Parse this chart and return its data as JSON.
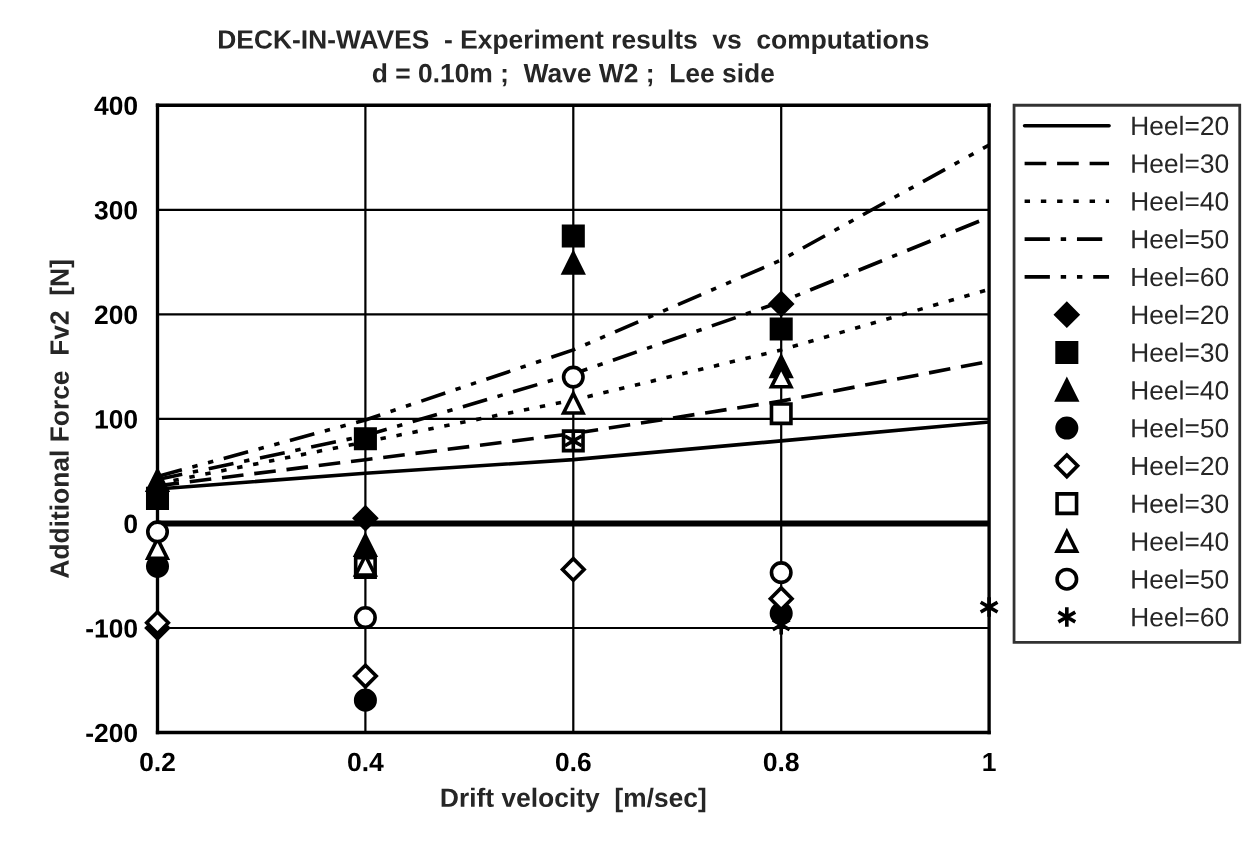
{
  "chart_data": {
    "type": "line",
    "title": "DECK-IN-WAVES  - Experiment results  vs  computations",
    "subtitle": "d = 0.10m ;  Wave W2 ;  Lee side",
    "xlabel": "Drift velocity  [m/sec]",
    "ylabel": "Additional Force  Fv2  [N]",
    "x": [
      0.2,
      0.4,
      0.6,
      0.8,
      1.0
    ],
    "series": [
      {
        "name": "Heel=20",
        "color": "#000000",
        "line_style": "solid",
        "marker": "none",
        "values": [
          33,
          48,
          61,
          79,
          97
        ]
      },
      {
        "name": "Heel=30",
        "color": "#000000",
        "line_style": "dashed",
        "marker": "none",
        "values": [
          36,
          61,
          86,
          117,
          155
        ]
      },
      {
        "name": "Heel=40",
        "color": "#000000",
        "line_style": "dotted",
        "marker": "none",
        "values": [
          38,
          78,
          118,
          166,
          224
        ]
      },
      {
        "name": "Heel=50",
        "color": "#000000",
        "line_style": "dashdot",
        "marker": "none",
        "values": [
          42,
          84,
          143,
          212,
          293
        ]
      },
      {
        "name": "Heel=60",
        "color": "#000000",
        "line_style": "dashdotdot",
        "marker": "none",
        "values": [
          45,
          99,
          166,
          252,
          362
        ]
      },
      {
        "name": "Heel=20",
        "type": "scatter",
        "color": "#000000",
        "marker": "diamond",
        "x": [
          0.2,
          0.4,
          0.8
        ],
        "values": [
          -100,
          5,
          210
        ]
      },
      {
        "name": "Heel=30",
        "type": "scatter",
        "color": "#000000",
        "marker": "square",
        "x": [
          0.2,
          0.4,
          0.6,
          0.8
        ],
        "values": [
          24,
          81,
          275,
          186
        ]
      },
      {
        "name": "Heel=40",
        "type": "scatter",
        "color": "#000000",
        "marker": "triangle",
        "x": [
          0.2,
          0.4,
          0.6,
          0.8
        ],
        "values": [
          41,
          -21,
          249,
          150
        ]
      },
      {
        "name": "Heel=50",
        "type": "scatter",
        "color": "#000000",
        "marker": "circle",
        "x": [
          0.2,
          0.4,
          0.8
        ],
        "values": [
          -41,
          -169,
          -86
        ]
      },
      {
        "name": "Heel=20",
        "type": "scatter",
        "color": "#ffffff",
        "marker": "diamond",
        "x": [
          0.2,
          0.4,
          0.6,
          0.8
        ],
        "values": [
          -95,
          -146,
          -44,
          -72
        ]
      },
      {
        "name": "Heel=30",
        "type": "scatter",
        "color": "#ffffff",
        "marker": "square",
        "x": [
          0.4,
          0.6,
          0.8
        ],
        "values": [
          -42,
          79,
          105
        ]
      },
      {
        "name": "Heel=40",
        "type": "scatter",
        "color": "#ffffff",
        "marker": "triangle",
        "x": [
          0.2,
          0.4,
          0.6,
          0.8
        ],
        "values": [
          -24,
          -40,
          115,
          140
        ]
      },
      {
        "name": "Heel=50",
        "type": "scatter",
        "color": "#ffffff",
        "marker": "circle",
        "x": [
          0.2,
          0.4,
          0.6,
          0.8
        ],
        "values": [
          -8,
          -90,
          140,
          -47
        ]
      },
      {
        "name": "Heel=60",
        "type": "scatter",
        "color": "#000000",
        "marker": "cross",
        "x": [
          0.6,
          0.8,
          1.0
        ],
        "values": [
          79,
          -97,
          -80
        ]
      }
    ],
    "xlim": [
      0.2,
      1.0
    ],
    "xticks": [
      0.2,
      0.4,
      0.6,
      0.8,
      {
        "value": 1.0,
        "label": "1"
      }
    ],
    "ylim": [
      -200,
      400
    ],
    "yticks": [
      -200,
      -100,
      0,
      100,
      200,
      300,
      400
    ],
    "ref_lines": [
      {
        "axis": "y",
        "value": 0,
        "color": "#000000"
      }
    ],
    "grid": true,
    "legend": "right"
  }
}
